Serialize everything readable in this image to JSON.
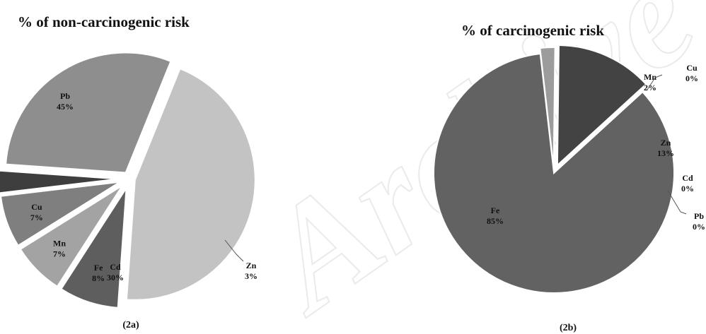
{
  "watermark": "Archive of SID",
  "chart_data": [
    {
      "type": "pie",
      "title": "% of non-carcinogenic risk",
      "caption": "(2a)",
      "slices": [
        {
          "label": "Pb",
          "value": 45,
          "value_label": "45%",
          "color": "#c3c3c3"
        },
        {
          "label": "Fe",
          "value": 8,
          "value_label": "8%",
          "color": "#5e5e5e"
        },
        {
          "label": "Mn",
          "value": 7,
          "value_label": "7%",
          "color": "#a3a3a3"
        },
        {
          "label": "Cu",
          "value": 7,
          "value_label": "7%",
          "color": "#7f7f7f"
        },
        {
          "label": "Zn",
          "value": 3,
          "value_label": "3%",
          "color": "#3e3e3e"
        },
        {
          "label": "Cd",
          "value": 30,
          "value_label": "30%",
          "color": "#8e8e8e"
        }
      ]
    },
    {
      "type": "pie",
      "title": "% of carcinogenic risk",
      "caption": "(2b)",
      "slices": [
        {
          "label": "Fe",
          "value": 85,
          "value_label": "85%",
          "color": "#626262"
        },
        {
          "label": "Mn",
          "value": 2,
          "value_label": "2%",
          "color": "#9c9c9c"
        },
        {
          "label": "Cu",
          "value": 0,
          "value_label": "0%",
          "color": "#b8b8b8"
        },
        {
          "label": "Zn",
          "value": 13,
          "value_label": "13%",
          "color": "#434343"
        },
        {
          "label": "Cd",
          "value": 0,
          "value_label": "0%",
          "color": "#8a8a8a"
        },
        {
          "label": "Pb",
          "value": 0,
          "value_label": "0%",
          "color": "#c3c3c3"
        }
      ]
    }
  ]
}
